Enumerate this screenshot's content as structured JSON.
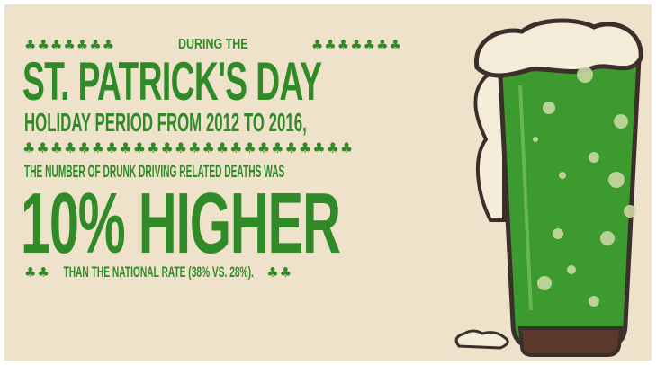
{
  "infographic": {
    "intro": "During the",
    "title": "St. Patrick's Day",
    "period": "Holiday period from 2012 to 2016,",
    "statement": "The number of drunk driving related deaths was",
    "headline": "10% Higher",
    "comparison": "than the national rate (38% vs. 28%).",
    "clovers_intro_left": "♣♣♣♣♣♣♣",
    "clovers_intro_right": "♣♣♣♣♣♣♣",
    "clovers_divider": "♣♣♣♣♣♣♣♣♣♣♣♣♣♣♣♣♣♣♣♣♣♣♣♣",
    "clovers_rate_left": "♣♣",
    "clovers_rate_right": "♣♣"
  },
  "colors": {
    "background": "#efe2cb",
    "text_green": "#2f8a27",
    "beer_green": "#3c9a2e",
    "foam": "#f4ecd9",
    "outline": "#3a2f2a"
  },
  "icons": [
    "shamrock-icon",
    "beer-glass-illustration"
  ]
}
